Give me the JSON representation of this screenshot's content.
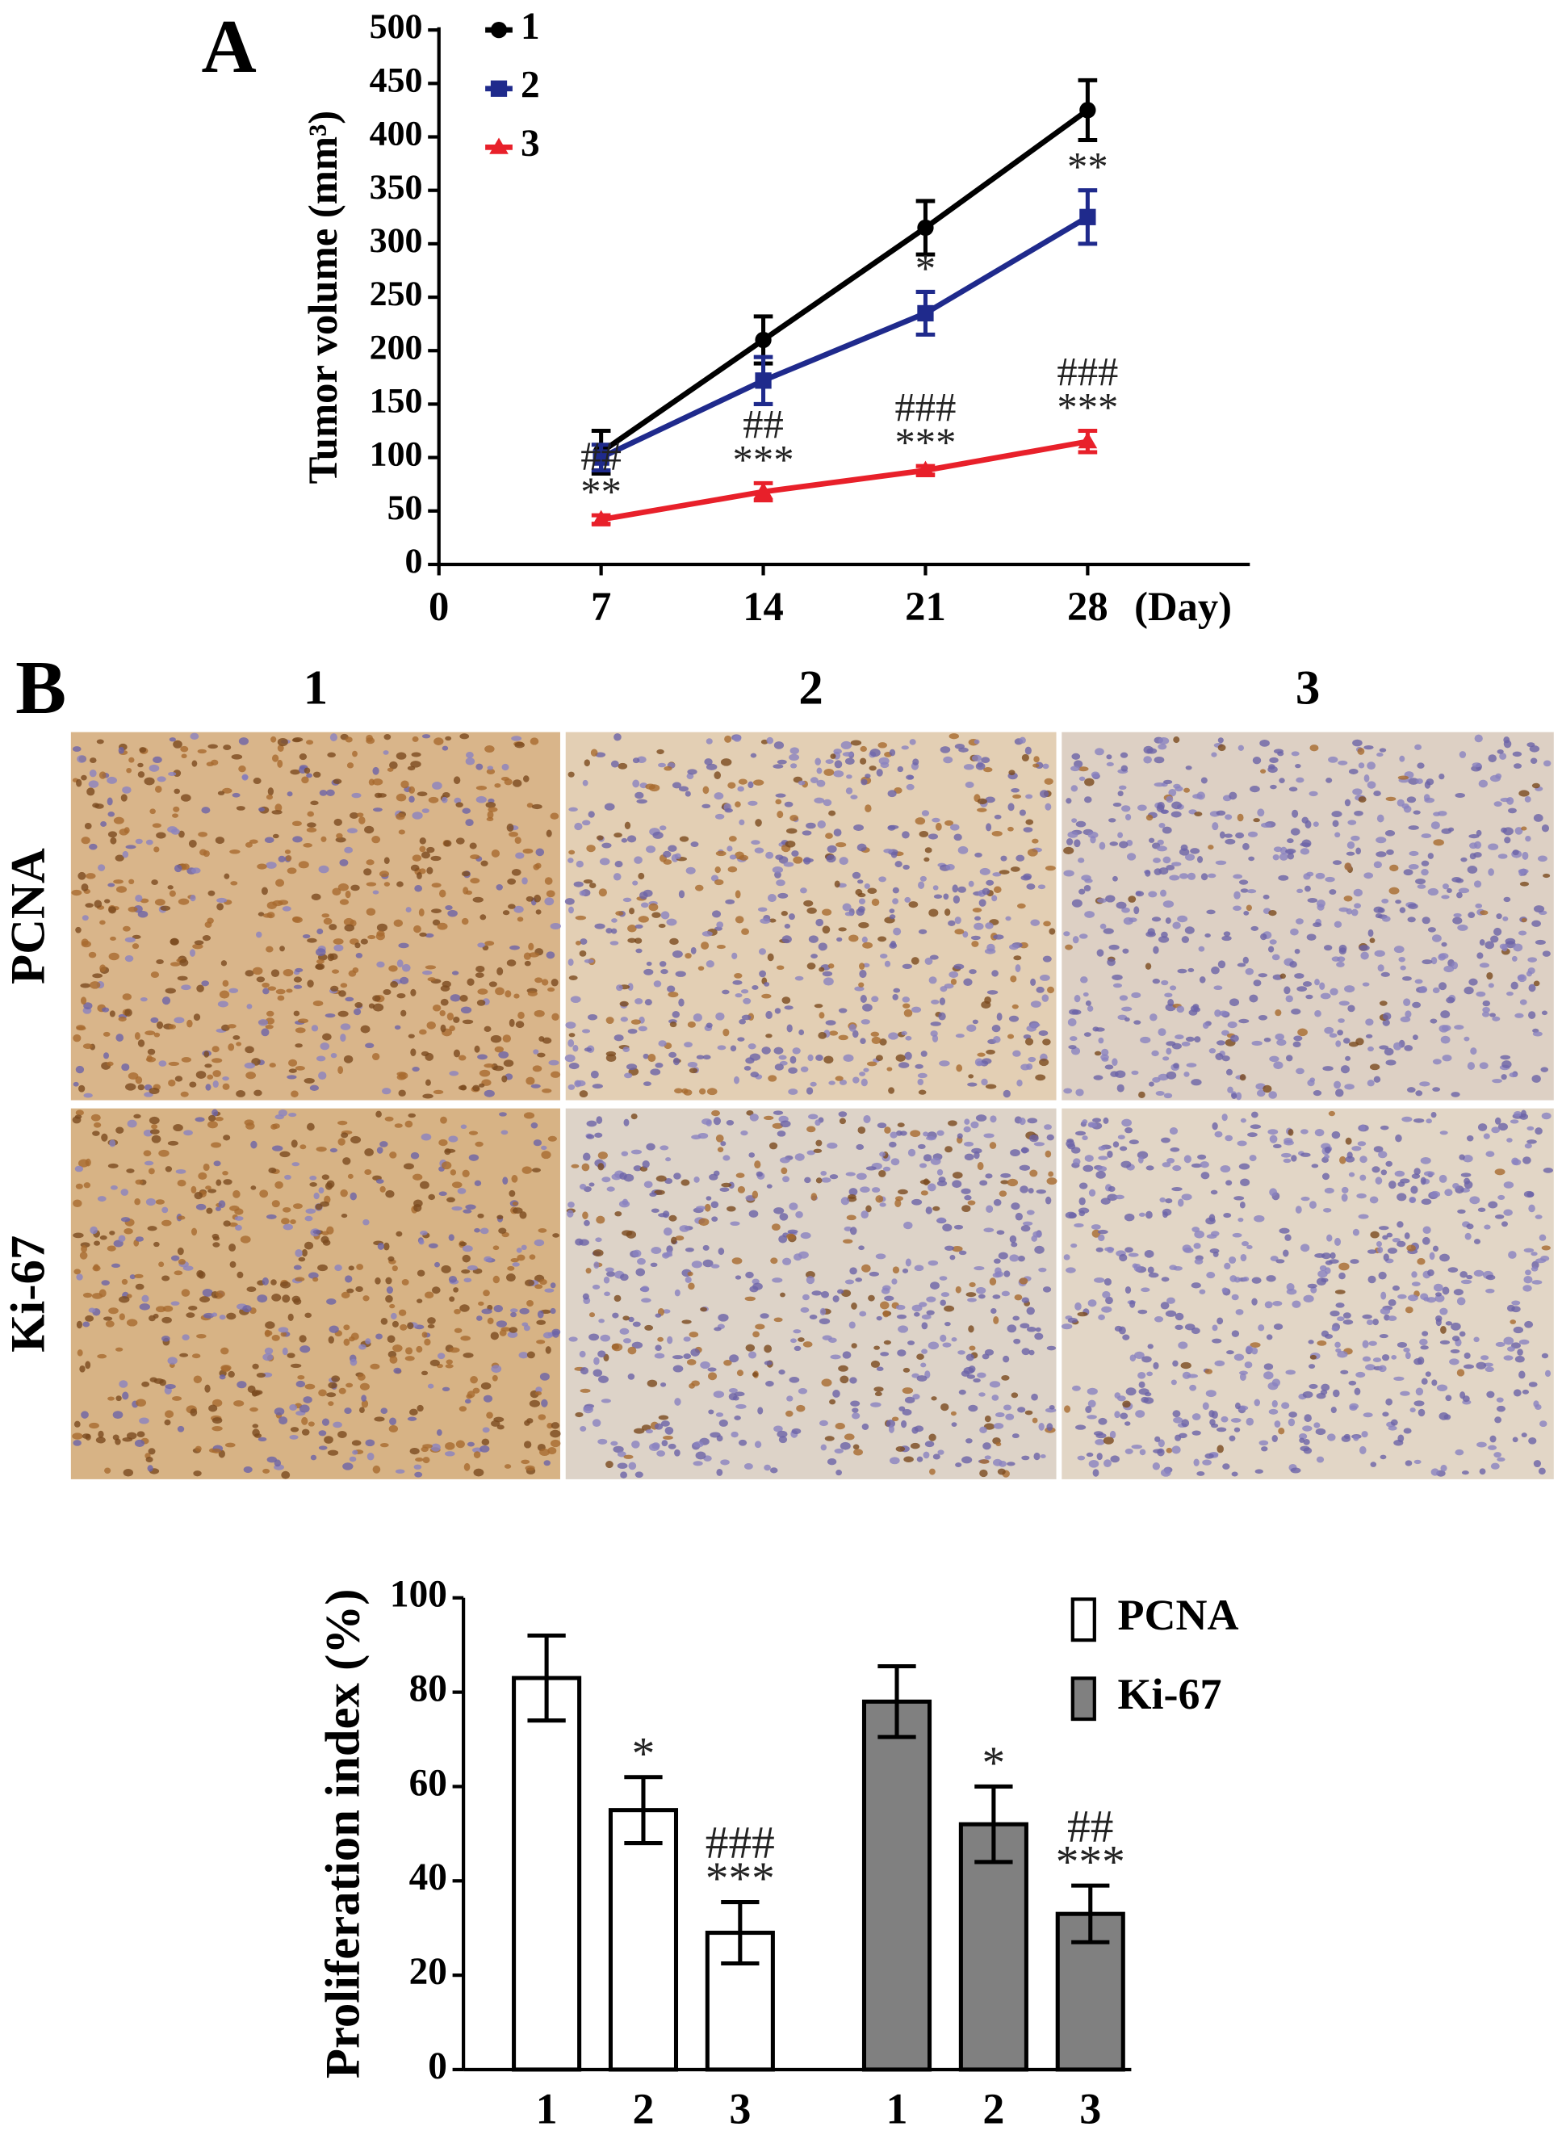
{
  "chart_data": [
    {
      "type": "line",
      "panel_label": "A",
      "ylabel": "Tumor volume (mm³)",
      "xlabel": "(Day)",
      "x": [
        7,
        14,
        21,
        28
      ],
      "xlim": [
        0,
        35
      ],
      "xticks": [
        0,
        7,
        14,
        21,
        28
      ],
      "ylim": [
        0,
        500
      ],
      "yticks": [
        0,
        50,
        100,
        150,
        200,
        250,
        300,
        350,
        400,
        450,
        500
      ],
      "series": [
        {
          "name": "1",
          "color": "#000000",
          "marker": "circle",
          "values": [
            105,
            210,
            315,
            425
          ],
          "errors": [
            20,
            22,
            25,
            28
          ],
          "annotations": [
            null,
            null,
            null,
            null
          ]
        },
        {
          "name": "2",
          "color": "#1f2a8c",
          "marker": "square",
          "values": [
            100,
            172,
            235,
            325
          ],
          "errors": [
            12,
            22,
            20,
            25
          ],
          "annotations": [
            null,
            null,
            [
              "*"
            ],
            [
              "**"
            ]
          ]
        },
        {
          "name": "3",
          "color": "#e8202a",
          "marker": "triangle",
          "values": [
            42,
            68,
            88,
            115
          ],
          "errors": [
            4,
            8,
            4,
            10
          ],
          "annotations": [
            [
              "##",
              "**"
            ],
            [
              "##",
              "***"
            ],
            [
              "###",
              "***"
            ],
            [
              "###",
              "***"
            ]
          ]
        }
      ]
    },
    {
      "type": "bar",
      "ylabel": "Proliferation index (%)",
      "categories": [
        "1",
        "2",
        "3"
      ],
      "ylim": [
        0,
        100
      ],
      "yticks": [
        0,
        20,
        40,
        60,
        80,
        100
      ],
      "series": [
        {
          "name": "PCNA",
          "color": "#ffffff",
          "values": [
            83,
            55,
            29
          ],
          "errors": [
            9,
            7,
            6.5
          ],
          "annotations": [
            null,
            [
              "*"
            ],
            [
              "###",
              "***"
            ]
          ]
        },
        {
          "name": "Ki-67",
          "color": "#808080",
          "values": [
            78,
            52,
            33
          ],
          "errors": [
            7.5,
            8,
            6
          ],
          "annotations": [
            null,
            [
              "*"
            ],
            [
              "##",
              "***"
            ]
          ]
        }
      ]
    }
  ],
  "panel_b": {
    "label": "B",
    "columns": [
      "1",
      "2",
      "3"
    ],
    "rows": [
      "PCNA",
      "Ki-67"
    ]
  }
}
